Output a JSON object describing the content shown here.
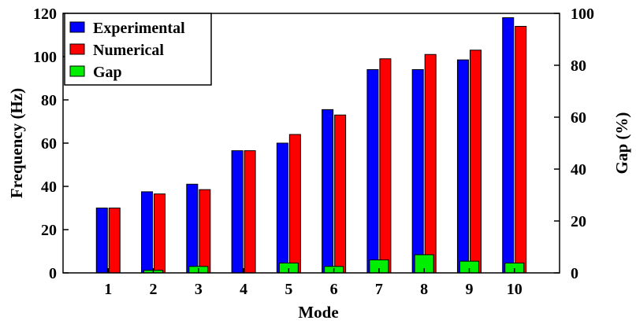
{
  "chart_data": {
    "type": "bar",
    "categories": [
      "1",
      "2",
      "3",
      "4",
      "5",
      "6",
      "7",
      "8",
      "9",
      "10"
    ],
    "series": [
      {
        "name": "Experimental",
        "axis": "left",
        "color": "#0000ff",
        "values": [
          30,
          37.5,
          41,
          56.5,
          60,
          75.5,
          94,
          94,
          98.5,
          118
        ]
      },
      {
        "name": "Numerical",
        "axis": "left",
        "color": "#ff0000",
        "values": [
          30,
          36.5,
          38.5,
          56.5,
          64,
          73,
          99,
          101,
          103,
          114
        ]
      },
      {
        "name": "Gap",
        "axis": "right",
        "color": "#00ee00",
        "values": [
          0,
          1,
          2.5,
          0,
          3.8,
          2.5,
          5,
          7,
          4.5,
          3.8
        ]
      }
    ],
    "xlabel": "Mode",
    "ylabel": "Frequency (Hz)",
    "y2label": "Gap (%)",
    "ylim": [
      0,
      120
    ],
    "y2lim": [
      0,
      100
    ],
    "yticks": [
      0,
      20,
      40,
      60,
      80,
      100,
      120
    ],
    "y2ticks": [
      0,
      20,
      40,
      60,
      80,
      100
    ],
    "grid": false,
    "legend_position": "top-left"
  }
}
